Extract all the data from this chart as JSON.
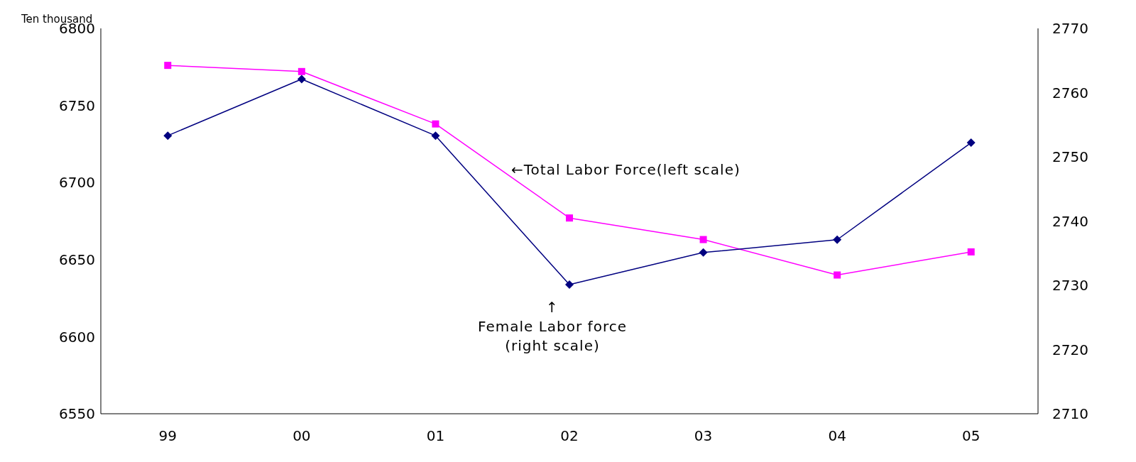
{
  "chart_data": {
    "type": "line",
    "ylabel": "Ten thousand",
    "categories": [
      "99",
      "00",
      "01",
      "02",
      "03",
      "04",
      "05"
    ],
    "series": [
      {
        "color": "#ff00ff",
        "marker": "square",
        "values": [
          6776,
          6772,
          6738,
          6677,
          6663,
          6640,
          6655
        ]
      },
      {
        "color": "#000080",
        "marker": "diamond",
        "axis": "y2",
        "values": [
          2753.3,
          2762.1,
          2753.3,
          2730.1,
          2735.1,
          2737.1,
          2752.2
        ]
      }
    ],
    "ylim": [
      6550,
      6800
    ],
    "yticks": [
      6550,
      6600,
      6650,
      6700,
      6750,
      6800
    ],
    "y2lim": [
      2710,
      2770
    ],
    "y2ticks": [
      2710,
      2720,
      2730,
      2740,
      2750,
      2760,
      2770
    ],
    "annotations": [
      "←Total Labor Force(left scale)",
      "↑\nFemale Labor force\n(right scale)"
    ],
    "grid": false,
    "legend": false
  }
}
